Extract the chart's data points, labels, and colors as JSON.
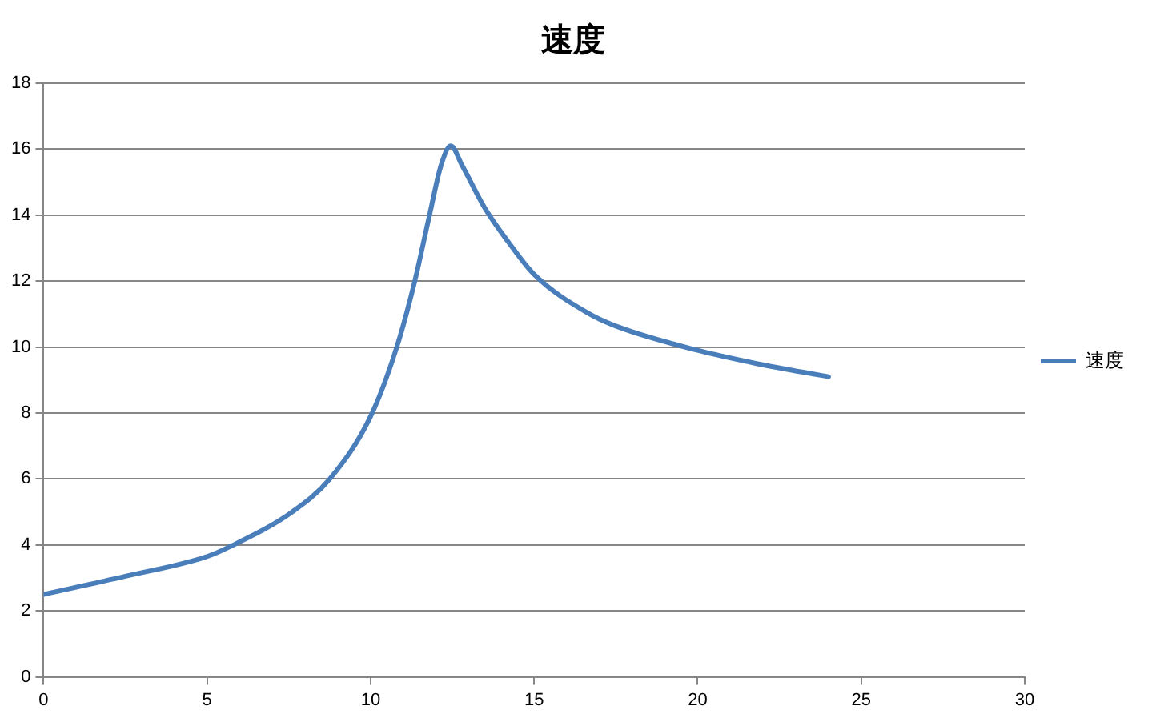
{
  "chart_data": {
    "type": "line",
    "title": "速度",
    "x": [
      0,
      2.5,
      5,
      5.7,
      7.6,
      8.75,
      10,
      10.8,
      11.35,
      11.8,
      12.15,
      12.45,
      12.8,
      13.5,
      14.2,
      15,
      16.7,
      17.6,
      20,
      21.8,
      24
    ],
    "series": [
      {
        "name": "速度",
        "color": "#4a7ebb",
        "values": [
          2.5,
          3.05,
          3.65,
          3.95,
          5,
          6,
          7.9,
          10,
          12,
          14,
          15.5,
          16.1,
          15.5,
          14.2,
          13.2,
          12.2,
          11,
          10.6,
          9.9,
          9.5,
          9.1
        ]
      }
    ],
    "xlim": [
      0,
      30
    ],
    "xticks": [
      0,
      5,
      10,
      15,
      20,
      25,
      30
    ],
    "ylim": [
      0,
      18
    ],
    "yticks": [
      0,
      2,
      4,
      6,
      8,
      10,
      12,
      14,
      16,
      18
    ],
    "grid": "y",
    "legend": "right",
    "marker": "none",
    "line_style": "solid"
  }
}
